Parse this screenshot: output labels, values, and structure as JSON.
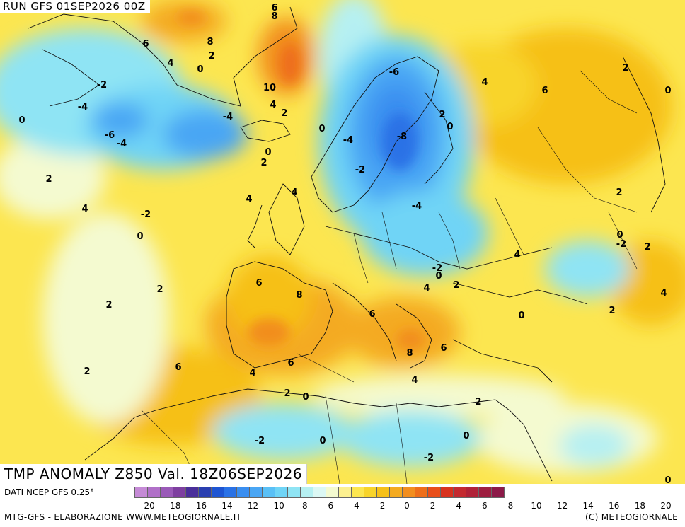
{
  "run_title": "RUN GFS 01SEP2026 00Z",
  "main_title": "TMP ANOMALY Z850 Val. 18Z06SEP2026",
  "data_source": "DATI NCEP GFS 0.25°",
  "credit_left": "MTG-GFS - ELABORAZIONE WWW.METEOGIORNALE.IT",
  "credit_right": "(C) METEOGIORNALE",
  "colorbar": {
    "colors": [
      "#c58ad6",
      "#b070c8",
      "#9a5ab8",
      "#7e3fa0",
      "#4a2f9a",
      "#2a3fb0",
      "#1e55d2",
      "#2a72e6",
      "#3a8ef0",
      "#4aa6f4",
      "#5ac0f6",
      "#6fd4f6",
      "#8fe4f4",
      "#b6f0f2",
      "#dcf8f4",
      "#f4fad0",
      "#fcf090",
      "#fce650",
      "#f8d42a",
      "#f6c018",
      "#f4aa20",
      "#f28e1e",
      "#ee6e1a",
      "#e84e1a",
      "#d8321e",
      "#c42a30",
      "#b02238",
      "#9e1e40",
      "#8c1a48"
    ],
    "ticks": [
      "-20",
      "-18",
      "-16",
      "-14",
      "-12",
      "-10",
      "-8",
      "-6",
      "-4",
      "-2",
      "0",
      "2",
      "4",
      "6",
      "8",
      "10",
      "12",
      "14",
      "16",
      "18",
      "20"
    ]
  },
  "contour_labels": [
    {
      "text": "6"
    },
    {
      "text": "8"
    },
    {
      "text": "8"
    },
    {
      "text": "2"
    },
    {
      "text": "6"
    },
    {
      "text": "4"
    },
    {
      "text": "0"
    },
    {
      "text": "-2"
    },
    {
      "text": "-4"
    },
    {
      "text": "10"
    },
    {
      "text": "4"
    },
    {
      "text": "2"
    },
    {
      "text": "-4"
    },
    {
      "text": "0"
    },
    {
      "text": "-6"
    },
    {
      "text": "-4"
    },
    {
      "text": "0"
    },
    {
      "text": "0"
    },
    {
      "text": "2"
    },
    {
      "text": "-4"
    },
    {
      "text": "-6"
    },
    {
      "text": "-8"
    },
    {
      "text": "-2"
    },
    {
      "text": "2"
    },
    {
      "text": "0"
    },
    {
      "text": "4"
    },
    {
      "text": "6"
    },
    {
      "text": "2"
    },
    {
      "text": "0"
    },
    {
      "text": "2"
    },
    {
      "text": "4"
    },
    {
      "text": "4"
    },
    {
      "text": "-2"
    },
    {
      "text": "0"
    },
    {
      "text": "-4"
    },
    {
      "text": "2"
    },
    {
      "text": "0"
    },
    {
      "text": "-2"
    },
    {
      "text": "2"
    },
    {
      "text": "4"
    },
    {
      "text": "-2"
    },
    {
      "text": "0"
    },
    {
      "text": "2"
    },
    {
      "text": "4"
    },
    {
      "text": "6"
    },
    {
      "text": "2"
    },
    {
      "text": "8"
    },
    {
      "text": "4"
    },
    {
      "text": "0"
    },
    {
      "text": "6"
    },
    {
      "text": "2"
    },
    {
      "text": "4"
    },
    {
      "text": "2"
    },
    {
      "text": "6"
    },
    {
      "text": "8"
    },
    {
      "text": "6"
    },
    {
      "text": "4"
    },
    {
      "text": "6"
    },
    {
      "text": "4"
    },
    {
      "text": "2"
    },
    {
      "text": "0"
    },
    {
      "text": "2"
    },
    {
      "text": "-2"
    },
    {
      "text": "0"
    },
    {
      "text": "0"
    },
    {
      "text": "-2"
    },
    {
      "text": "2"
    },
    {
      "text": "0"
    }
  ]
}
